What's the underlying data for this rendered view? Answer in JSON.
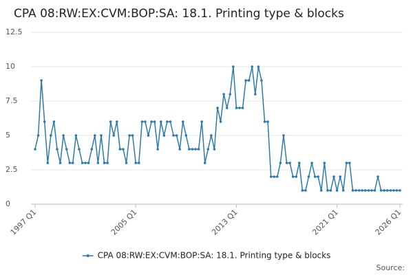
{
  "chart_data": {
    "type": "line",
    "title": "CPA 08:RW:EX:CVM:BOP:SA: 18.1. Printing type & blocks",
    "categories": [
      "1997 Q1",
      null,
      null,
      null,
      null,
      null,
      null,
      null,
      null,
      null,
      null,
      null,
      null,
      null,
      null,
      null,
      null,
      null,
      null,
      null,
      null,
      null,
      null,
      null,
      null,
      null,
      null,
      null,
      null,
      null,
      null,
      null,
      "2005 Q1",
      null,
      null,
      null,
      null,
      null,
      null,
      null,
      null,
      null,
      null,
      null,
      null,
      null,
      null,
      null,
      null,
      null,
      null,
      null,
      null,
      null,
      null,
      null,
      null,
      null,
      null,
      null,
      null,
      null,
      null,
      null,
      "2013 Q1",
      null,
      null,
      null,
      null,
      null,
      null,
      null,
      null,
      null,
      null,
      null,
      null,
      null,
      null,
      null,
      null,
      null,
      null,
      null,
      null,
      null,
      null,
      null,
      null,
      null,
      null,
      null,
      null,
      null,
      null,
      null,
      "2021 Q1",
      null,
      null,
      null,
      null,
      null,
      null,
      null,
      null,
      null,
      null,
      null,
      null,
      null,
      null,
      null,
      null,
      null,
      null,
      null,
      "2026 Q1"
    ],
    "series": [
      {
        "name": "CPA 08:RW:EX:CVM:BOP:SA: 18.1. Printing type & blocks",
        "color": "#2a7ab0",
        "values": [
          4,
          5,
          9,
          6,
          3,
          5,
          6,
          4,
          3,
          5,
          4,
          3,
          3,
          5,
          4,
          3,
          3,
          3,
          4,
          5,
          3,
          5,
          3,
          3,
          6,
          5,
          6,
          4,
          4,
          3,
          5,
          5,
          3,
          3,
          6,
          6,
          5,
          6,
          6,
          4,
          6,
          5,
          6,
          6,
          5,
          5,
          4,
          6,
          5,
          4,
          4,
          4,
          4,
          6,
          3,
          4,
          5,
          4,
          7,
          6,
          8,
          7,
          8,
          10,
          7,
          7,
          7,
          9,
          9,
          10,
          8,
          10,
          9,
          6,
          6,
          2,
          2,
          2,
          3,
          5,
          3,
          3,
          2,
          2,
          3,
          1,
          1,
          2,
          3,
          2,
          2,
          1,
          3,
          1,
          1,
          2,
          1,
          2,
          1,
          3,
          3,
          1,
          1,
          1,
          1,
          1,
          1,
          1,
          1,
          2,
          1,
          1,
          1,
          1,
          1,
          1,
          1
        ]
      }
    ],
    "ylim": [
      0,
      12.5
    ],
    "yticks": [
      0,
      2.5,
      5,
      7.5,
      10,
      12.5
    ],
    "grid": true,
    "legend": "bottom",
    "source": "Source:"
  }
}
